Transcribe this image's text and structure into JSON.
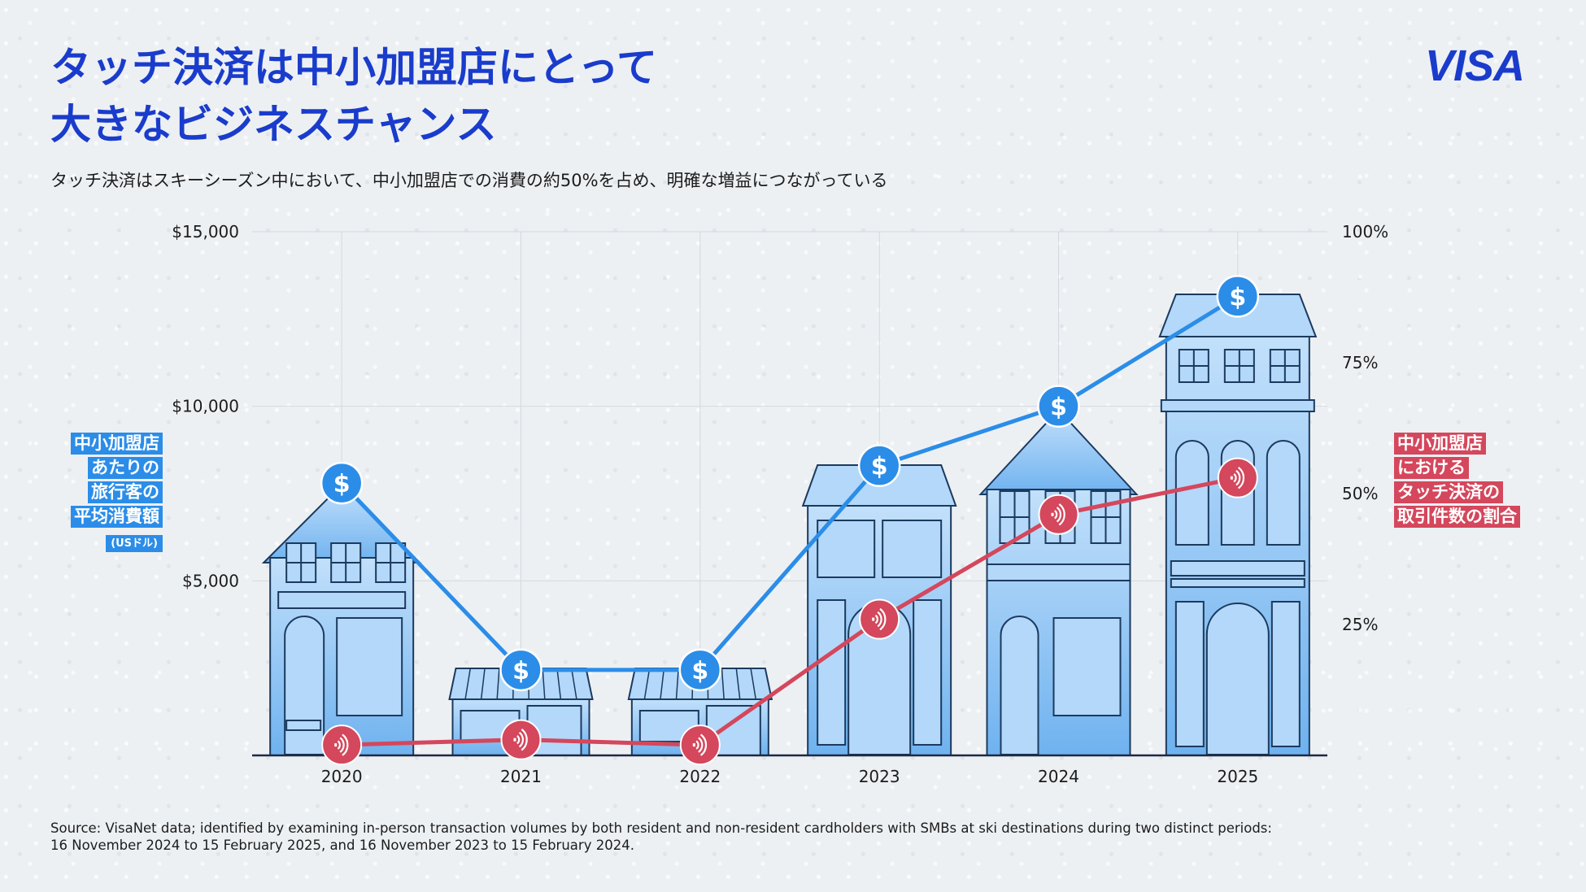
{
  "header": {
    "title_line1": "タッチ決済は中小加盟店にとって",
    "title_line2": "大きなビジネスチャンス",
    "subtitle": "タッチ決済はスキーシーズン中において、中小加盟店での消費の約50%を占め、明確な増益につながっている",
    "logo": "VISA"
  },
  "legend": {
    "left_lines": [
      "中小加盟店",
      "あたりの",
      "旅行客の",
      "平均消費額"
    ],
    "left_unit": "(USドル)",
    "right_lines": [
      "中小加盟店",
      "における",
      "タッチ決済の",
      "取引件数の割合"
    ]
  },
  "source": "Source: VisaNet data; identified by examining in-person transaction volumes by both resident and non-resident cardholders with SMBs at ski destinations during two distinct periods: 16 November 2024 to 15 February 2025, and 16 November 2023 to 15 February 2024.",
  "colors": {
    "accent_blue": "#1a3ccc",
    "spend_line": "#2b8de8",
    "contactless_line": "#d4475c",
    "building_fill": "#9dcdf7",
    "building_stroke": "#1c3a5e"
  },
  "icons": [
    "dollar-icon",
    "contactless-icon"
  ],
  "chart_data": {
    "type": "line",
    "categories": [
      "2020",
      "2021",
      "2022",
      "2023",
      "2024",
      "2025"
    ],
    "y_left": {
      "ylim": [
        0,
        15000
      ],
      "ticks": [
        5000,
        10000,
        15000
      ],
      "tick_labels": [
        "$5,000",
        "$10,000",
        "$15,000"
      ]
    },
    "y_right": {
      "ylim": [
        0,
        100
      ],
      "ticks": [
        25,
        50,
        75,
        100
      ],
      "tick_labels": [
        "25%",
        "50%",
        "75%",
        "100%"
      ]
    },
    "series": [
      {
        "axis": "left",
        "values": [
          7800,
          2450,
          2450,
          8300,
          10000,
          13150
        ]
      },
      {
        "axis": "right",
        "values": [
          2,
          3,
          2,
          26,
          46,
          53
        ]
      }
    ],
    "grid": true,
    "legend_placement": "left and right of plot"
  }
}
